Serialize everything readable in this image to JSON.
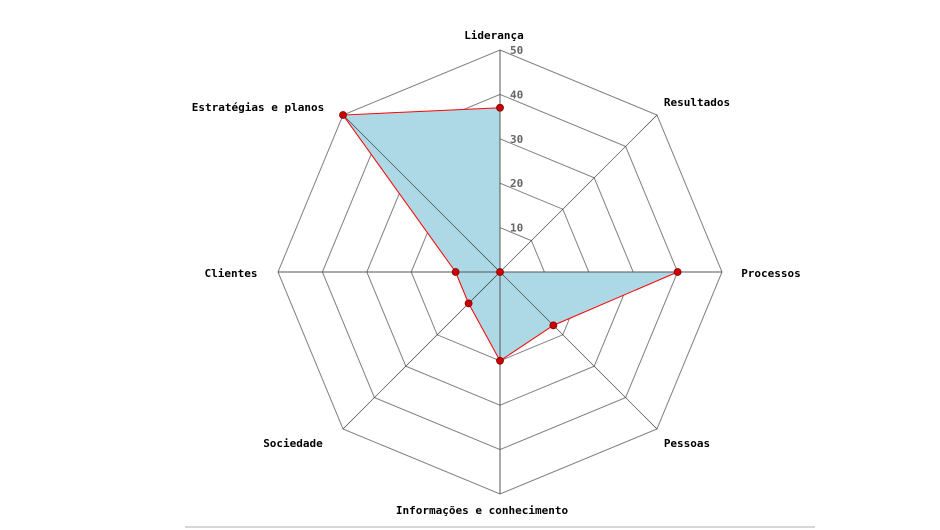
{
  "chart_data": {
    "type": "radar",
    "title": "",
    "categories": [
      "Liderança",
      "Resultados",
      "Processos",
      "Pessoas",
      "Informações e conhecimento",
      "Sociedade",
      "Clientes",
      "Estratégias e planos"
    ],
    "series": [
      {
        "name": "",
        "values": [
          37,
          0,
          40,
          17,
          20,
          10,
          10,
          50
        ]
      }
    ],
    "rlim": [
      0,
      50
    ],
    "ticks": [
      10,
      20,
      30,
      40,
      50
    ],
    "tick_labels": [
      "10",
      "20",
      "30",
      "40",
      "50"
    ],
    "grid": true,
    "legend": "none",
    "colors": {
      "fill": "#add8e6",
      "line": "#ff0000",
      "marker": "#cc0000",
      "grid": "#808080"
    }
  }
}
